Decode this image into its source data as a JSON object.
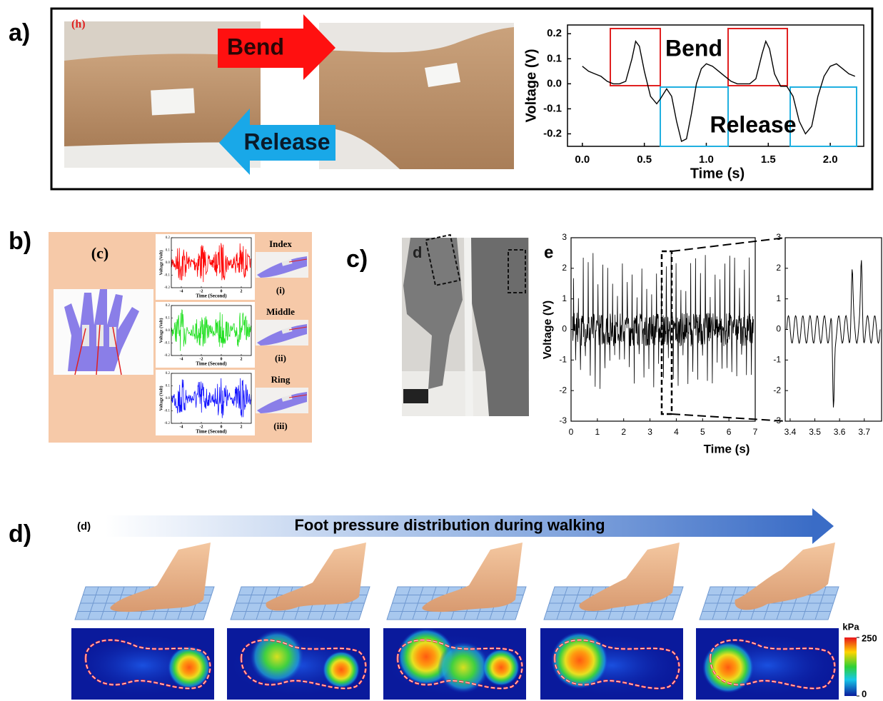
{
  "panel_a": {
    "label": "a)",
    "tag": "(h)",
    "arrow_labels": [
      "Bend",
      "Release"
    ],
    "chart": {
      "type": "line",
      "xlabel": "Time (s)",
      "ylabel": "Voltage (V)",
      "annotations": [
        "Bend",
        "Release"
      ],
      "x": [
        0,
        0.05,
        0.1,
        0.15,
        0.2,
        0.25,
        0.3,
        0.35,
        0.4,
        0.43,
        0.46,
        0.5,
        0.55,
        0.6,
        0.63,
        0.68,
        0.72,
        0.76,
        0.8,
        0.84,
        0.88,
        0.92,
        0.96,
        1.0,
        1.05,
        1.1,
        1.15,
        1.2,
        1.25,
        1.3,
        1.35,
        1.4,
        1.45,
        1.48,
        1.51,
        1.55,
        1.6,
        1.65,
        1.7,
        1.75,
        1.8,
        1.85,
        1.9,
        1.95,
        2.0,
        2.05,
        2.1,
        2.15,
        2.2
      ],
      "values": [
        0.07,
        0.05,
        0.04,
        0.03,
        0.01,
        0.0,
        0.0,
        0.01,
        0.1,
        0.17,
        0.15,
        0.05,
        -0.05,
        -0.08,
        -0.06,
        -0.02,
        -0.05,
        -0.15,
        -0.23,
        -0.22,
        -0.12,
        0.0,
        0.06,
        0.08,
        0.07,
        0.05,
        0.03,
        0.01,
        0.0,
        0.0,
        0.0,
        0.02,
        0.12,
        0.17,
        0.14,
        0.04,
        -0.01,
        -0.01,
        -0.05,
        -0.15,
        -0.2,
        -0.17,
        -0.05,
        0.03,
        0.07,
        0.08,
        0.06,
        0.04,
        0.03
      ],
      "xlim": [
        -0.12,
        2.27
      ],
      "ylim": [
        -0.25,
        0.235
      ],
      "xticks": [
        {
          "value": 0,
          "label": "0.0"
        },
        0.5,
        {
          "value": 1,
          "label": "1.0"
        },
        1.5,
        {
          "value": 2,
          "label": "2.0"
        }
      ],
      "yticks": [
        0.2,
        0.1,
        {
          "value": 0,
          "label": "0.0"
        },
        -0.1,
        -0.2
      ]
    }
  },
  "panel_b": {
    "label": "b)",
    "tag": "(c)",
    "ylabel": "Voltage (Volt)",
    "xlabel": "Time (Second)",
    "xlim": [
      -5,
      3
    ],
    "ylim": [
      -0.2,
      0.2
    ],
    "xticks": [
      -4,
      -2,
      0,
      2
    ],
    "yticks": [
      0.2,
      0.1,
      {
        "value": 0,
        "label": "0.0"
      },
      -0.1,
      -0.2
    ],
    "rows": [
      {
        "finger": "Index",
        "numeral": "(i)",
        "color": "#ff0000"
      },
      {
        "finger": "Middle",
        "numeral": "(ii)",
        "color": "#22e022"
      },
      {
        "finger": "Ring",
        "numeral": "(iii)",
        "color": "#1010ff"
      }
    ]
  },
  "panel_c": {
    "label": "c)",
    "photo_tag": "d",
    "chart_tag": "e",
    "ylabel": "Voltage (V)",
    "xlabel": "Time (s)",
    "main": {
      "xlim": [
        0,
        7
      ],
      "ylim": [
        -3,
        3
      ],
      "xticks": [
        0,
        1,
        2,
        3,
        4,
        5,
        6,
        7
      ],
      "yticks": [
        3,
        2,
        1,
        0,
        -1,
        -2,
        -3
      ]
    },
    "zoom": {
      "xlim": [
        3.38,
        3.77
      ],
      "ylim": [
        -3,
        3
      ],
      "xticks": [
        3.4,
        3.5,
        3.6,
        3.7
      ],
      "yticks": [
        3,
        2,
        1,
        0,
        -1,
        -2,
        -3
      ]
    }
  },
  "panel_d": {
    "label": "d)",
    "tag": "(d)",
    "title": "Foot pressure distribution during walking",
    "colorbar": {
      "unit": "kPa",
      "lim": [
        0,
        250
      ],
      "ticks": [
        250,
        0
      ]
    }
  }
}
